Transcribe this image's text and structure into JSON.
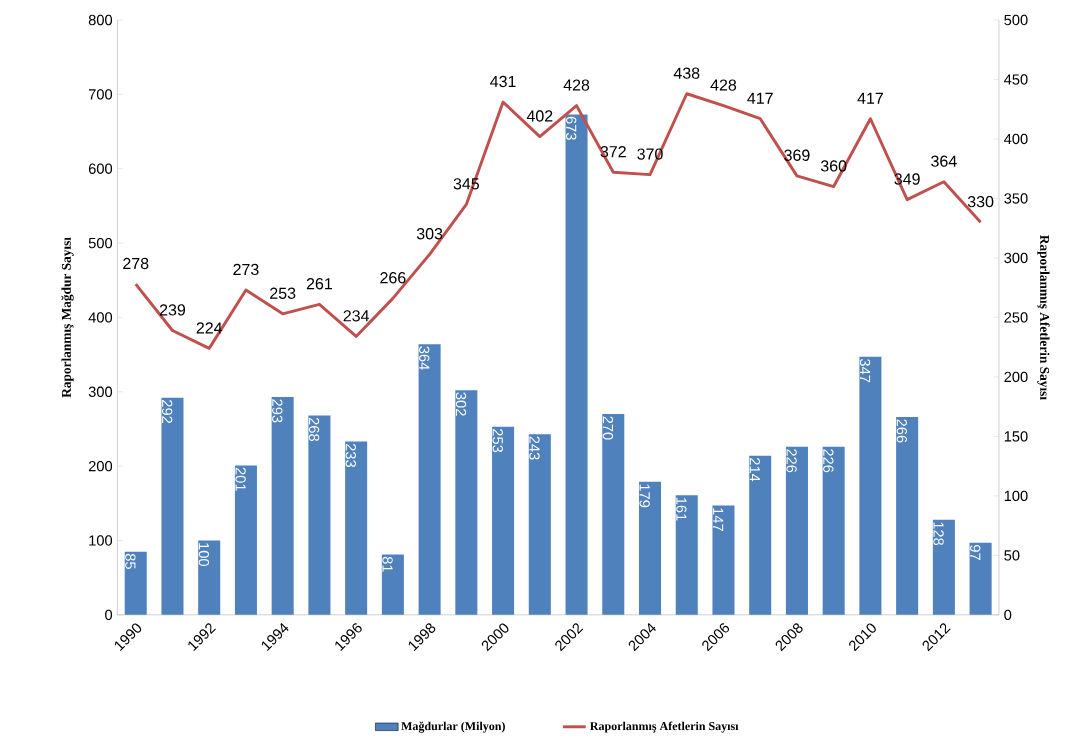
{
  "chart_data": {
    "type": "bar",
    "categories": [
      "1990",
      null,
      "1992",
      null,
      "1994",
      null,
      "1996",
      null,
      "1998",
      null,
      "2000",
      null,
      "2002",
      null,
      "2004",
      null,
      "2006",
      null,
      "2008",
      null,
      "2010",
      null,
      "2012",
      null
    ],
    "series": [
      {
        "name": "Mağdurlar (Milyon)",
        "color": "#4f81bd",
        "values": [
          85,
          292,
          100,
          201,
          293,
          268,
          233,
          81,
          364,
          302,
          253,
          243,
          673,
          270,
          179,
          161,
          147,
          214,
          226,
          226,
          347,
          266,
          128,
          97
        ]
      },
      {
        "name": "Raporlanmış Afetlerin Sayısı",
        "type": "line",
        "axis": "y2",
        "color": "#c0504d",
        "values": [
          278,
          239,
          224,
          273,
          253,
          261,
          234,
          266,
          303,
          345,
          431,
          402,
          428,
          372,
          370,
          438,
          428,
          417,
          369,
          360,
          417,
          349,
          364,
          330
        ]
      }
    ],
    "ylabel": "Raporlanmış Mağdur Sayısı",
    "y2label": "Raporlanmış Afetlerin Sayısı",
    "ylim": [
      0,
      800
    ],
    "yticks": [
      0,
      100,
      200,
      300,
      400,
      500,
      600,
      700,
      800
    ],
    "y2lim": [
      0,
      500
    ],
    "y2ticks": [
      0,
      50,
      100,
      150,
      200,
      250,
      300,
      350,
      400,
      450,
      500
    ],
    "data_labels": true,
    "legend": "bottom"
  }
}
